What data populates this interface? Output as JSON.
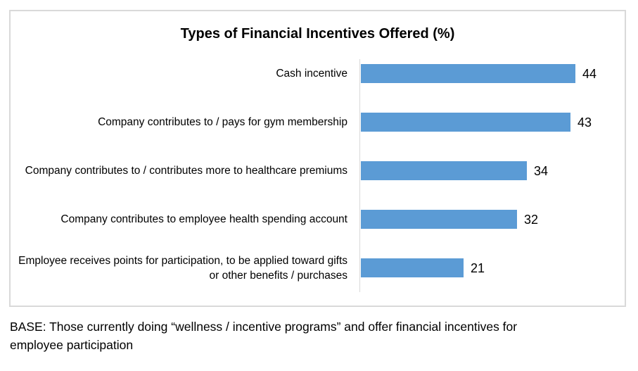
{
  "chart": {
    "bar_color": "#5B9BD5",
    "axis_color": "#D9D9D9",
    "border_color": "#D9D9D9"
  },
  "chart_data": {
    "type": "bar",
    "orientation": "horizontal",
    "title": "Types of Financial Incentives Offered (%)",
    "categories": [
      "Cash incentive",
      "Company contributes to / pays for gym membership",
      "Company contributes to / contributes more to healthcare premiums",
      "Company contributes to employee health spending account",
      "Employee receives points for participation, to be applied toward gifts or other benefits / purchases"
    ],
    "values": [
      44,
      43,
      34,
      32,
      21
    ],
    "data_labels": [
      "44",
      "43",
      "34",
      "32",
      "21"
    ],
    "xlabel": "",
    "ylabel": "",
    "xlim": [
      0,
      54
    ],
    "grid": false,
    "legend": false
  },
  "footer": {
    "lines": [
      "BASE: Those currently doing “wellness / incentive programs” and offer financial incentives for",
      "employee participation"
    ]
  }
}
